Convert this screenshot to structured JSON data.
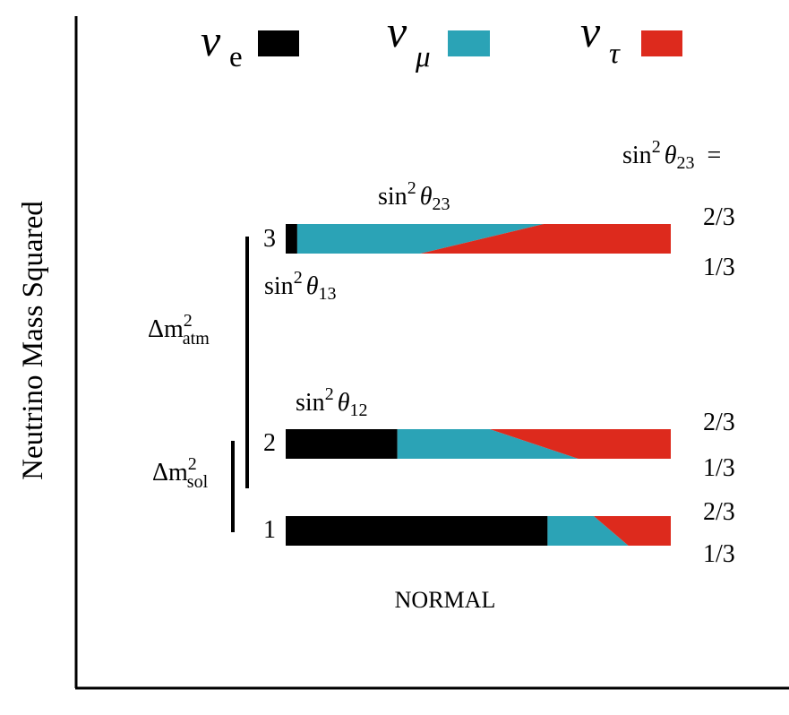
{
  "legend": [
    {
      "symbol": "ν",
      "sub": "e",
      "color": "#000000"
    },
    {
      "symbol": "ν",
      "sub": "μ",
      "color": "#2ba3b6"
    },
    {
      "symbol": "ν",
      "sub": "τ",
      "color": "#dd2a1d"
    }
  ],
  "y_axis_label": "Neutrino Mass Squared",
  "scenario_label": "NORMAL",
  "theta23_header": {
    "prefix": "sin",
    "sup": "2",
    "theta": "θ",
    "sub": "23",
    "eq": "="
  },
  "angle_labels": {
    "theta23": {
      "prefix": "sin",
      "sup": "2",
      "theta": "θ",
      "sub": "23"
    },
    "theta13": {
      "prefix": "sin",
      "sup": "2",
      "theta": "θ",
      "sub": "13"
    },
    "theta12": {
      "prefix": "sin",
      "sup": "2",
      "theta": "θ",
      "sub": "12"
    }
  },
  "splittings": {
    "atm": {
      "delta": "Δm",
      "sup": "2",
      "sub": "atm"
    },
    "sol": {
      "delta": "Δm",
      "sup": "2",
      "sub": "sol"
    }
  },
  "mass_states": [
    {
      "label": "3",
      "nu_e": 0.03,
      "nu_mu_at_23_2of3": 0.67,
      "nu_mu_at_23_1of3": 0.35,
      "upper_value": "2/3",
      "lower_value": "1/3"
    },
    {
      "label": "2",
      "nu_e": 0.29,
      "nu_mu_at_23_2of3": 0.53,
      "nu_mu_at_23_1of3": 0.76,
      "upper_value": "2/3",
      "lower_value": "1/3"
    },
    {
      "label": "1",
      "nu_e": 0.68,
      "nu_mu_at_23_2of3": 0.8,
      "nu_mu_at_23_1of3": 0.89,
      "upper_value": "2/3",
      "lower_value": "1/3"
    }
  ]
}
